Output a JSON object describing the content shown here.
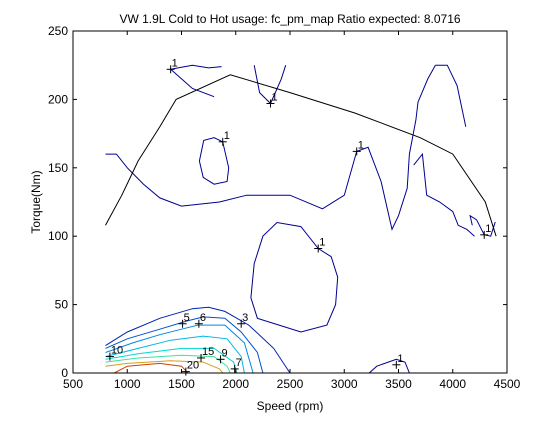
{
  "chart_data": {
    "type": "contour",
    "title": "VW 1.9L Cold to Hot usage: fc_pm_map Ratio expected: 8.0716",
    "xlabel": "Speed (rpm)",
    "ylabel": "Torque(Nm)",
    "xlim": [
      500,
      4500
    ],
    "ylim": [
      0,
      250
    ],
    "x_ticks": [
      "500",
      "1000",
      "1500",
      "2000",
      "2500",
      "3000",
      "3500",
      "4000",
      "4500"
    ],
    "y_ticks": [
      "0",
      "50",
      "100",
      "150",
      "200",
      "250"
    ],
    "grid": false,
    "legend": "none",
    "max_torque_curve": [
      [
        800,
        108
      ],
      [
        950,
        130
      ],
      [
        1100,
        155
      ],
      [
        1300,
        180
      ],
      [
        1450,
        200
      ],
      [
        1950,
        218
      ],
      [
        2500,
        205
      ],
      [
        3100,
        190
      ],
      [
        3700,
        172
      ],
      [
        4000,
        160
      ],
      [
        4300,
        125
      ],
      [
        4400,
        100
      ]
    ],
    "contours": [
      {
        "level": "1",
        "color": "#000090",
        "points": [
          [
            1400,
            222
          ],
          [
            1600,
            225
          ],
          [
            1750,
            223
          ],
          [
            1870,
            224
          ]
        ]
      },
      {
        "level": "1",
        "color": "#000090",
        "points": [
          [
            1400,
            222
          ],
          [
            1600,
            208
          ],
          [
            1800,
            202
          ]
        ]
      },
      {
        "level": "1",
        "color": "#000090",
        "points": [
          [
            2320,
            197
          ],
          [
            2420,
            215
          ],
          [
            2460,
            225
          ]
        ]
      },
      {
        "level": "1",
        "color": "#000090",
        "points": [
          [
            2320,
            197
          ],
          [
            2220,
            205
          ],
          [
            2170,
            225
          ]
        ]
      },
      {
        "level": "1",
        "color": "#000090",
        "points": [
          [
            1880,
            169
          ],
          [
            1800,
            172
          ],
          [
            1705,
            170
          ],
          [
            1665,
            155
          ],
          [
            1700,
            143
          ],
          [
            1800,
            138
          ],
          [
            1920,
            140
          ],
          [
            1935,
            150
          ],
          [
            1880,
            169
          ]
        ]
      },
      {
        "level": "1",
        "color": "#000090",
        "points": [
          [
            800,
            160
          ],
          [
            900,
            160
          ],
          [
            1000,
            150
          ],
          [
            1150,
            138
          ],
          [
            1300,
            128
          ],
          [
            1500,
            122
          ],
          [
            1850,
            125
          ],
          [
            2100,
            130
          ],
          [
            2500,
            130
          ],
          [
            2800,
            120
          ],
          [
            3000,
            130
          ],
          [
            3115,
            162
          ]
        ]
      },
      {
        "level": "1",
        "color": "#000090",
        "points": [
          [
            3115,
            162
          ],
          [
            3220,
            165
          ],
          [
            3340,
            140
          ],
          [
            3440,
            105
          ],
          [
            3500,
            115
          ],
          [
            3580,
            135
          ],
          [
            3600,
            160
          ],
          [
            3660,
            185
          ],
          [
            3680,
            198
          ],
          [
            3770,
            215
          ],
          [
            3840,
            225
          ]
        ]
      },
      {
        "level": "1",
        "color": "#000090",
        "points": [
          [
            3840,
            225
          ],
          [
            3950,
            225
          ],
          [
            4040,
            210
          ],
          [
            4120,
            180
          ]
        ]
      },
      {
        "level": "1",
        "color": "#000090",
        "points": [
          [
            3640,
            152
          ],
          [
            3720,
            160
          ],
          [
            3760,
            130
          ],
          [
            3880,
            125
          ],
          [
            4000,
            118
          ],
          [
            4050,
            108
          ],
          [
            4130,
            105
          ],
          [
            4200,
            100
          ]
        ]
      },
      {
        "level": "1",
        "color": "#000090",
        "points": [
          [
            4290,
            101
          ],
          [
            4220,
            112
          ],
          [
            4160,
            115
          ],
          [
            4180,
            108
          ]
        ]
      },
      {
        "level": "1",
        "color": "#000090",
        "points": [
          [
            4290,
            101
          ],
          [
            4350,
            100
          ],
          [
            4390,
            110
          ],
          [
            4395,
            110
          ]
        ]
      },
      {
        "level": "1",
        "color": "#000090",
        "points": [
          [
            2760,
            91
          ],
          [
            2600,
            107
          ],
          [
            2380,
            110
          ],
          [
            2250,
            100
          ],
          [
            2170,
            80
          ],
          [
            2140,
            55
          ],
          [
            2200,
            40
          ],
          [
            2400,
            35
          ],
          [
            2600,
            30
          ],
          [
            2840,
            35
          ],
          [
            2920,
            50
          ],
          [
            2940,
            70
          ],
          [
            2880,
            85
          ],
          [
            2760,
            91
          ]
        ]
      },
      {
        "level": "1",
        "color": "#000090",
        "points": [
          [
            3230,
            0
          ],
          [
            3300,
            5
          ],
          [
            3480,
            10
          ],
          [
            3560,
            8
          ],
          [
            3600,
            0
          ]
        ]
      },
      {
        "level": "3",
        "color": "#0022b0",
        "points": [
          [
            800,
            20
          ],
          [
            1000,
            30
          ],
          [
            1300,
            40
          ],
          [
            1600,
            47
          ],
          [
            1750,
            48
          ],
          [
            1900,
            45
          ],
          [
            2120,
            35
          ],
          [
            2350,
            18
          ],
          [
            2500,
            0
          ]
        ]
      },
      {
        "level": "5",
        "color": "#0050d0",
        "points": [
          [
            800,
            18
          ],
          [
            1000,
            25
          ],
          [
            1300,
            32
          ],
          [
            1550,
            38
          ],
          [
            1700,
            41
          ],
          [
            1900,
            40
          ],
          [
            2050,
            30
          ],
          [
            2200,
            15
          ],
          [
            2250,
            0
          ]
        ]
      },
      {
        "level": "6",
        "color": "#0088e0",
        "points": [
          [
            800,
            15
          ],
          [
            1050,
            22
          ],
          [
            1300,
            28
          ],
          [
            1500,
            32
          ],
          [
            1650,
            35
          ],
          [
            1900,
            35
          ],
          [
            2080,
            22
          ],
          [
            2160,
            0
          ]
        ]
      },
      {
        "level": "7",
        "color": "#00b8e8",
        "points": [
          [
            800,
            12
          ],
          [
            1100,
            18
          ],
          [
            1400,
            24
          ],
          [
            1700,
            27
          ],
          [
            1920,
            25
          ],
          [
            2050,
            12
          ],
          [
            2080,
            0
          ]
        ]
      },
      {
        "level": "9",
        "color": "#00d8d0",
        "points": [
          [
            800,
            10
          ],
          [
            1100,
            14
          ],
          [
            1500,
            18
          ],
          [
            1800,
            18
          ],
          [
            1980,
            8
          ],
          [
            2010,
            0
          ]
        ]
      },
      {
        "level": "10",
        "color": "#40e0a0",
        "points": [
          [
            800,
            8
          ],
          [
            1100,
            11
          ],
          [
            1500,
            13
          ],
          [
            1800,
            12
          ],
          [
            1920,
            5
          ],
          [
            1950,
            0
          ]
        ]
      },
      {
        "level": "15",
        "color": "#d0a020",
        "points": [
          [
            800,
            5
          ],
          [
            1000,
            7
          ],
          [
            1400,
            9
          ],
          [
            1700,
            8
          ],
          [
            1850,
            3
          ],
          [
            1880,
            0
          ]
        ]
      },
      {
        "level": "20",
        "color": "#d04000",
        "points": [
          [
            880,
            0
          ],
          [
            1000,
            5
          ],
          [
            1300,
            7
          ],
          [
            1500,
            5
          ],
          [
            1560,
            0
          ]
        ]
      }
    ],
    "contour_labels": [
      {
        "text": "1",
        "x": 1400,
        "y": 222
      },
      {
        "text": "1",
        "x": 2320,
        "y": 197
      },
      {
        "text": "1",
        "x": 1880,
        "y": 169
      },
      {
        "text": "1",
        "x": 3115,
        "y": 162
      },
      {
        "text": "1",
        "x": 4290,
        "y": 101
      },
      {
        "text": "1",
        "x": 2760,
        "y": 91
      },
      {
        "text": "1",
        "x": 3480,
        "y": 6
      },
      {
        "text": "5",
        "x": 1510,
        "y": 36
      },
      {
        "text": "6",
        "x": 1660,
        "y": 36
      },
      {
        "text": "3",
        "x": 2050,
        "y": 36
      },
      {
        "text": "10",
        "x": 840,
        "y": 12
      },
      {
        "text": "15",
        "x": 1680,
        "y": 11
      },
      {
        "text": "9",
        "x": 1860,
        "y": 10
      },
      {
        "text": "7",
        "x": 1990,
        "y": 3
      },
      {
        "text": "20",
        "x": 1540,
        "y": 1
      }
    ]
  }
}
